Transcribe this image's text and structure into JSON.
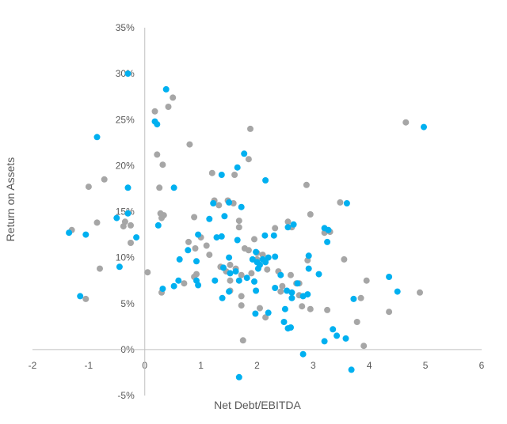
{
  "chart_data": {
    "type": "scatter",
    "title": "",
    "xlabel": "Net Debt/EBITDA",
    "ylabel": "Return on Assets",
    "xlim": [
      -2,
      6
    ],
    "ylim": [
      -5,
      35
    ],
    "x_ticks": [
      -2,
      -1,
      0,
      1,
      2,
      3,
      4,
      5,
      6
    ],
    "x_tick_labels": [
      "-2",
      "-1",
      "0",
      "1",
      "2",
      "3",
      "4",
      "5",
      "6"
    ],
    "y_ticks": [
      -5,
      0,
      5,
      10,
      15,
      20,
      25,
      30,
      35
    ],
    "y_tick_labels": [
      "-5%",
      "0%",
      "5%",
      "10%",
      "15%",
      "20%",
      "25%",
      "30%",
      "35%"
    ],
    "grid": false,
    "legend": "none",
    "series": [
      {
        "color": "#00b0f0",
        "points": [
          [
            -0.3,
            30.0
          ],
          [
            0.38,
            28.3
          ],
          [
            0.18,
            24.8
          ],
          [
            0.22,
            24.5
          ],
          [
            -0.85,
            23.1
          ],
          [
            4.97,
            24.2
          ],
          [
            1.77,
            21.3
          ],
          [
            1.65,
            19.8
          ],
          [
            1.37,
            19.0
          ],
          [
            -0.3,
            17.6
          ],
          [
            0.52,
            17.6
          ],
          [
            2.15,
            18.4
          ],
          [
            1.5,
            16.0
          ],
          [
            1.22,
            15.9
          ],
          [
            1.72,
            15.5
          ],
          [
            3.6,
            15.9
          ],
          [
            -0.3,
            14.8
          ],
          [
            0.24,
            13.5
          ],
          [
            -0.15,
            12.2
          ],
          [
            -0.5,
            14.3
          ],
          [
            -1.35,
            12.7
          ],
          [
            -1.05,
            12.5
          ],
          [
            1.15,
            14.2
          ],
          [
            1.42,
            14.5
          ],
          [
            0.95,
            12.5
          ],
          [
            1.28,
            12.2
          ],
          [
            1.37,
            12.3
          ],
          [
            1.65,
            11.9
          ],
          [
            0.62,
            9.8
          ],
          [
            0.77,
            10.8
          ],
          [
            0.92,
            9.6
          ],
          [
            -0.45,
            9.0
          ],
          [
            2.14,
            12.4
          ],
          [
            2.3,
            12.4
          ],
          [
            2.55,
            13.3
          ],
          [
            2.65,
            13.6
          ],
          [
            3.2,
            13.2
          ],
          [
            3.27,
            13.0
          ],
          [
            3.25,
            11.7
          ],
          [
            1.5,
            10.0
          ],
          [
            1.4,
            8.9
          ],
          [
            1.52,
            8.3
          ],
          [
            1.62,
            8.5
          ],
          [
            1.68,
            7.5
          ],
          [
            1.25,
            7.5
          ],
          [
            0.92,
            7.5
          ],
          [
            0.32,
            6.6
          ],
          [
            0.52,
            6.9
          ],
          [
            0.6,
            7.5
          ],
          [
            0.95,
            7.0
          ],
          [
            1.38,
            5.6
          ],
          [
            1.5,
            6.3
          ],
          [
            1.82,
            7.8
          ],
          [
            1.95,
            7.4
          ],
          [
            1.92,
            9.8
          ],
          [
            1.98,
            10.6
          ],
          [
            2.0,
            9.5
          ],
          [
            2.05,
            9.2
          ],
          [
            2.1,
            9.8
          ],
          [
            2.15,
            9.5
          ],
          [
            2.2,
            10.0
          ],
          [
            2.32,
            10.1
          ],
          [
            2.42,
            8.1
          ],
          [
            2.53,
            6.4
          ],
          [
            2.72,
            7.2
          ],
          [
            2.82,
            5.8
          ],
          [
            2.9,
            6.0
          ],
          [
            2.92,
            8.8
          ],
          [
            2.92,
            10.2
          ],
          [
            3.1,
            8.2
          ],
          [
            1.97,
            3.9
          ],
          [
            2.2,
            4.0
          ],
          [
            2.5,
            4.4
          ],
          [
            2.48,
            3.0
          ],
          [
            2.55,
            2.3
          ],
          [
            2.6,
            2.4
          ],
          [
            2.82,
            -0.5
          ],
          [
            3.2,
            0.9
          ],
          [
            3.35,
            2.2
          ],
          [
            3.42,
            1.5
          ],
          [
            3.58,
            1.2
          ],
          [
            3.68,
            -2.2
          ],
          [
            3.72,
            5.5
          ],
          [
            4.35,
            7.9
          ],
          [
            4.5,
            6.3
          ],
          [
            -1.15,
            5.8
          ],
          [
            1.68,
            -3.0
          ],
          [
            2.62,
            5.6
          ],
          [
            2.32,
            6.7
          ],
          [
            1.98,
            6.4
          ],
          [
            2.02,
            8.8
          ],
          [
            2.62,
            6.2
          ]
        ]
      },
      {
        "color": "#a6a6a6",
        "points": [
          [
            0.5,
            27.4
          ],
          [
            0.42,
            26.4
          ],
          [
            0.18,
            25.9
          ],
          [
            1.88,
            24.0
          ],
          [
            4.65,
            24.7
          ],
          [
            0.8,
            22.3
          ],
          [
            0.22,
            21.2
          ],
          [
            0.32,
            20.1
          ],
          [
            1.85,
            20.7
          ],
          [
            1.2,
            19.2
          ],
          [
            1.6,
            19.0
          ],
          [
            -0.72,
            18.5
          ],
          [
            -1.0,
            17.7
          ],
          [
            0.26,
            17.6
          ],
          [
            2.88,
            17.9
          ],
          [
            1.24,
            16.2
          ],
          [
            1.48,
            16.2
          ],
          [
            1.58,
            15.9
          ],
          [
            1.32,
            15.7
          ],
          [
            0.28,
            14.8
          ],
          [
            0.34,
            14.6
          ],
          [
            0.3,
            14.3
          ],
          [
            0.88,
            14.4
          ],
          [
            1.68,
            14.0
          ],
          [
            2.55,
            13.9
          ],
          [
            1.68,
            13.3
          ],
          [
            -0.35,
            13.9
          ],
          [
            -0.38,
            13.4
          ],
          [
            -0.85,
            13.8
          ],
          [
            -0.25,
            13.5
          ],
          [
            -1.3,
            13.0
          ],
          [
            -0.25,
            11.6
          ],
          [
            0.78,
            11.7
          ],
          [
            1.0,
            12.2
          ],
          [
            1.1,
            11.3
          ],
          [
            0.9,
            11.0
          ],
          [
            1.15,
            10.3
          ],
          [
            1.78,
            11.0
          ],
          [
            1.85,
            10.8
          ],
          [
            2.0,
            10.5
          ],
          [
            2.1,
            10.3
          ],
          [
            2.0,
            9.8
          ],
          [
            1.95,
            12.0
          ],
          [
            1.52,
            9.2
          ],
          [
            1.35,
            9.0
          ],
          [
            1.45,
            8.5
          ],
          [
            1.62,
            8.8
          ],
          [
            1.52,
            7.5
          ],
          [
            1.72,
            8.1
          ],
          [
            1.9,
            8.3
          ],
          [
            2.18,
            8.7
          ],
          [
            2.38,
            8.5
          ],
          [
            2.6,
            8.1
          ],
          [
            2.45,
            6.9
          ],
          [
            2.7,
            7.2
          ],
          [
            2.75,
            7.2
          ],
          [
            0.92,
            8.2
          ],
          [
            0.88,
            7.9
          ],
          [
            0.7,
            7.2
          ],
          [
            0.3,
            6.2
          ],
          [
            0.05,
            8.4
          ],
          [
            -0.8,
            8.8
          ],
          [
            1.52,
            6.4
          ],
          [
            1.72,
            5.8
          ],
          [
            1.72,
            4.8
          ],
          [
            2.05,
            4.5
          ],
          [
            2.15,
            3.5
          ],
          [
            1.75,
            1.0
          ],
          [
            2.42,
            6.3
          ],
          [
            2.75,
            5.9
          ],
          [
            2.8,
            4.7
          ],
          [
            2.95,
            4.4
          ],
          [
            3.25,
            4.3
          ],
          [
            2.9,
            9.7
          ],
          [
            3.55,
            9.8
          ],
          [
            3.85,
            5.6
          ],
          [
            3.95,
            7.5
          ],
          [
            3.78,
            3.0
          ],
          [
            4.35,
            4.1
          ],
          [
            3.9,
            0.4
          ],
          [
            4.9,
            6.2
          ],
          [
            3.3,
            12.8
          ],
          [
            3.2,
            12.7
          ],
          [
            3.48,
            16.0
          ],
          [
            2.32,
            13.2
          ],
          [
            2.62,
            13.3
          ],
          [
            2.95,
            14.7
          ],
          [
            -1.05,
            5.5
          ]
        ]
      }
    ]
  }
}
